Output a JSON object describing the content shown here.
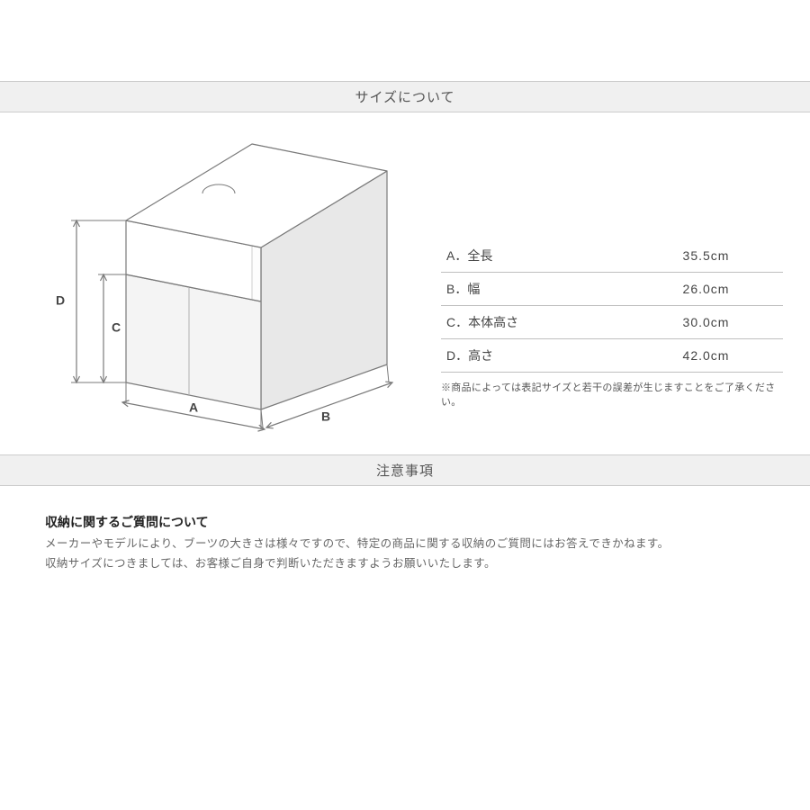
{
  "sizeSection": {
    "header": "サイズについて",
    "diagram": {
      "type": "diagram",
      "stroke": "#7a7a7a",
      "stroke_light": "#b0b0b0",
      "fill_front": "#f4f4f4",
      "fill_top": "#ffffff",
      "fill_side": "#e8e8e8",
      "label_font_size": 14,
      "label_font_weight": "bold",
      "label_color": "#444444",
      "labels": {
        "A": "A",
        "B": "B",
        "C": "C",
        "D": "D"
      }
    },
    "table": {
      "rows": [
        {
          "label": "A．全長",
          "value": "35.5cm"
        },
        {
          "label": "B．幅",
          "value": "26.0cm"
        },
        {
          "label": "C．本体高さ",
          "value": "30.0cm"
        },
        {
          "label": "D．高さ",
          "value": "42.0cm"
        }
      ],
      "footnote": "※商品によっては表記サイズと若干の誤差が生じますことをご了承ください。"
    }
  },
  "notesSection": {
    "header": "注意事項",
    "heading": "収納に関するご質問について",
    "line1": "メーカーやモデルにより、ブーツの大きさは様々ですので、特定の商品に関する収納のご質問にはお答えできかねます。",
    "line2": "収納サイズにつきましては、お客様ご自身で判断いただきますようお願いいたします。"
  }
}
